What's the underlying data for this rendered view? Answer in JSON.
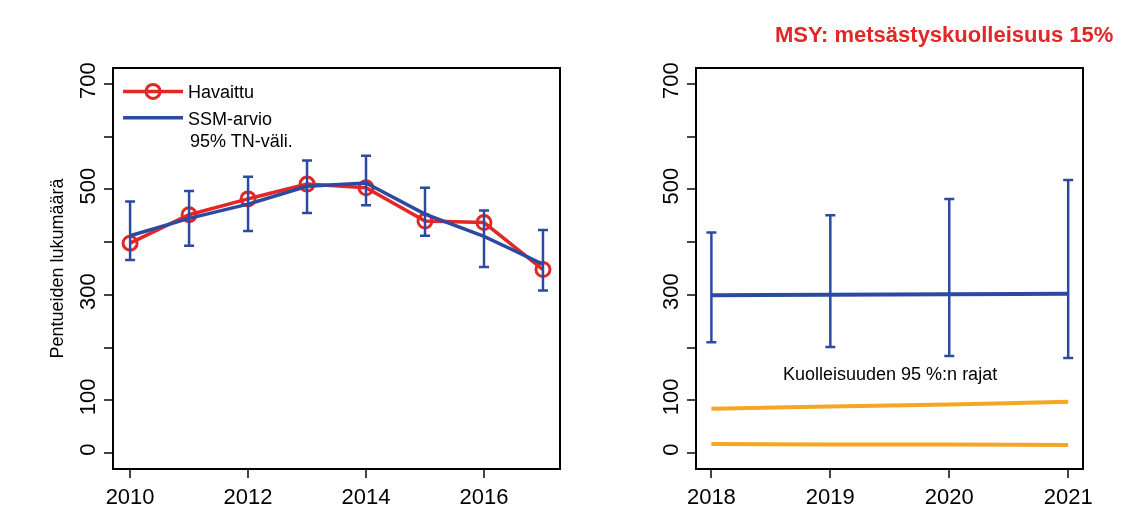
{
  "chart_data": [
    {
      "type": "line",
      "ylabel": "Pentueiden lukumäärä",
      "x": [
        2010,
        2011,
        2012,
        2013,
        2014,
        2015,
        2016,
        2017
      ],
      "xlim": [
        2009.72,
        2017.28
      ],
      "xticks": [
        2010,
        2012,
        2014,
        2016
      ],
      "ylim": [
        -28,
        728
      ],
      "yticks": [
        0,
        100,
        {
          "value": 200,
          "label": null
        },
        300,
        {
          "value": 400,
          "label": null
        },
        500,
        {
          "value": 600,
          "label": null
        },
        700
      ],
      "legend": "top left",
      "annotations": [
        "95% TN-väli."
      ],
      "series": [
        {
          "name": "Havaittu",
          "color": "#e32626",
          "marker": "circle",
          "values": [
            398,
            452,
            482,
            510,
            503,
            440,
            437,
            348
          ]
        },
        {
          "name": "SSM-arvio",
          "color": "#2c4ba0",
          "marker": "none",
          "values": [
            412,
            445,
            472,
            506,
            512,
            453,
            411,
            358
          ],
          "errors": [
            [
              366,
              477
            ],
            [
              393,
              497
            ],
            [
              421,
              524
            ],
            [
              455,
              555
            ],
            [
              470,
              564
            ],
            [
              412,
              503
            ],
            [
              353,
              460
            ],
            [
              308,
              423
            ]
          ]
        }
      ]
    },
    {
      "type": "line",
      "title": "MSY: metsästyskuolleisuus 15%",
      "x": [
        2018,
        2019,
        2020,
        2021
      ],
      "xlim": [
        2017.88,
        2021.12
      ],
      "xticks": [
        2018,
        2019,
        2020,
        2021
      ],
      "ylim": [
        -28,
        728
      ],
      "yticks": [
        0,
        100,
        {
          "value": 200,
          "label": null
        },
        300,
        {
          "value": 400,
          "label": null
        },
        500,
        {
          "value": 600,
          "label": null
        },
        700
      ],
      "legend": false,
      "annotations": [
        "Kuolleisuuden 95 %:n rajat"
      ],
      "series": [
        {
          "color": "#2c4ba0",
          "marker": "none",
          "values": [
            299,
            300,
            301,
            302
          ],
          "errors": [
            [
              210,
              418
            ],
            [
              201,
              451
            ],
            [
              184,
              482
            ],
            [
              180,
              518
            ]
          ]
        },
        {
          "color": "#f5a623",
          "marker": "none",
          "values": [
            84,
            88,
            92,
            97
          ]
        },
        {
          "color": "#f5a623",
          "marker": "none",
          "values": [
            17,
            16,
            16,
            15
          ]
        }
      ]
    }
  ]
}
